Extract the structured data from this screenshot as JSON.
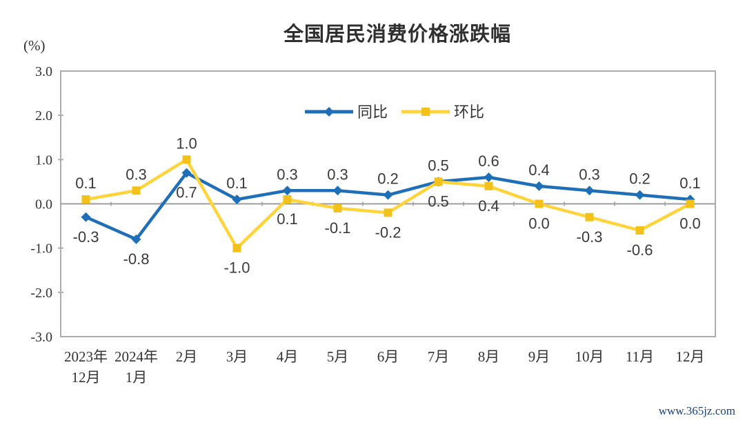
{
  "title": "全国居民消费价格涨跌幅",
  "axis_unit": "(%)",
  "watermark": "www.365jz.com",
  "colors": {
    "series_tongbi": "#1E6FB8",
    "series_huanbi_line": "#FFD43B",
    "series_huanbi_marker": "#F2C21A",
    "axis_border": "#ACACAC",
    "zero_line": "#9C9C9C",
    "tick_text": "#333333",
    "data_label_text": "#3A3A3A",
    "watermark_text": "#17427E"
  },
  "chart_data": {
    "type": "line",
    "title": "全国居民消费价格涨跌幅",
    "ylabel": "(%)",
    "ylim": [
      -3.0,
      3.0
    ],
    "ytick_labels": [
      "3.0",
      "2.0",
      "1.0",
      "0.0",
      "-1.0",
      "-2.0",
      "-3.0"
    ],
    "ytick_values": [
      3.0,
      2.0,
      1.0,
      0.0,
      -1.0,
      -2.0,
      -3.0
    ],
    "grid": false,
    "legend_position": "top-center-inside",
    "categories": [
      [
        "2023年",
        "12月"
      ],
      [
        "2024年",
        "1月"
      ],
      "2月",
      "3月",
      "4月",
      "5月",
      "6月",
      "7月",
      "8月",
      "9月",
      "10月",
      "11月",
      "12月"
    ],
    "series": [
      {
        "name": "同比",
        "marker": "diamond",
        "values": [
          -0.3,
          -0.8,
          0.7,
          0.1,
          0.3,
          0.3,
          0.2,
          0.5,
          0.6,
          0.4,
          0.3,
          0.2,
          0.1
        ],
        "labels": [
          "-0.3",
          "-0.8",
          "0.7",
          "0.1",
          "0.3",
          "0.3",
          "0.2",
          "0.5",
          "0.6",
          "0.4",
          "0.3",
          "0.2",
          "0.1"
        ],
        "label_side": [
          "below",
          "below",
          "below",
          "above",
          "above",
          "above",
          "above",
          "above",
          "above",
          "above",
          "above",
          "above",
          "above"
        ]
      },
      {
        "name": "环比",
        "marker": "square",
        "values": [
          0.1,
          0.3,
          1.0,
          -1.0,
          0.1,
          -0.1,
          -0.2,
          0.5,
          0.4,
          0.0,
          -0.3,
          -0.6,
          0.0
        ],
        "labels": [
          "0.1",
          "0.3",
          "1.0",
          "-1.0",
          "0.1",
          "-0.1",
          "-0.2",
          "0.5",
          "0.4",
          "0.0",
          "-0.3",
          "-0.6",
          "0.0"
        ],
        "label_side": [
          "above",
          "above",
          "above",
          "below",
          "below",
          "below",
          "below",
          "below",
          "below",
          "below",
          "below",
          "below",
          "below"
        ]
      }
    ]
  }
}
